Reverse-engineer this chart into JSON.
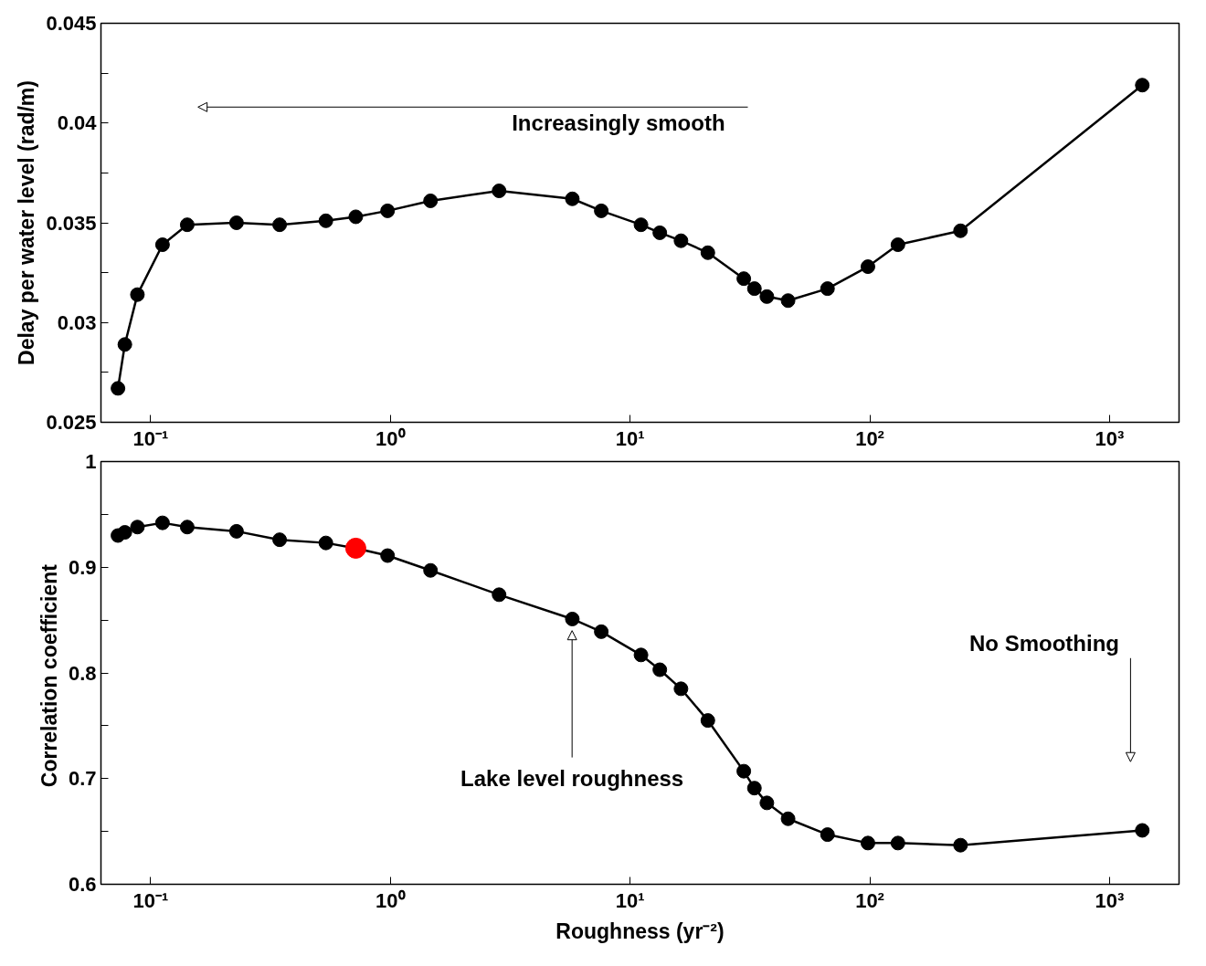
{
  "chart_data": [
    {
      "type": "line",
      "ylabel": "Delay per water level (rad/m)",
      "log": "x",
      "grid": false,
      "marker": "circle",
      "line_style": "solid",
      "xlim": [
        0.062,
        1950
      ],
      "xticks": [
        {
          "value": 0.1,
          "label": "10⁻¹"
        },
        {
          "value": 1,
          "label": "10⁰"
        },
        {
          "value": 10,
          "label": "10¹"
        },
        {
          "value": 100,
          "label": "10²"
        },
        {
          "value": 1000,
          "label": "10³"
        }
      ],
      "ylim": [
        0.025,
        0.045
      ],
      "yticks": [
        0.025,
        {
          "value": 0.0275,
          "label": null
        },
        0.03,
        {
          "value": 0.0325,
          "label": null
        },
        0.035,
        {
          "value": 0.0375,
          "label": null
        },
        0.04,
        {
          "value": 0.0425,
          "label": null
        },
        0.045
      ],
      "x": [
        0.073,
        0.078,
        0.088,
        0.112,
        0.142,
        0.228,
        0.345,
        0.538,
        0.717,
        0.973,
        1.47,
        2.84,
        5.74,
        7.58,
        11.1,
        13.3,
        16.3,
        21.1,
        29.8,
        33.0,
        37.2,
        45.6,
        66.6,
        98.2,
        131,
        239,
        1370
      ],
      "series": [
        {
          "color": "#000000",
          "values": [
            0.0267,
            0.0289,
            0.0314,
            0.0339,
            0.0349,
            0.035,
            0.0349,
            0.0351,
            0.0353,
            0.0356,
            0.0361,
            0.0366,
            0.0362,
            0.0356,
            0.0349,
            0.0345,
            0.0341,
            0.0335,
            0.0322,
            0.0317,
            0.0313,
            0.0311,
            0.0317,
            0.0328,
            0.0339,
            0.0346,
            0.0419
          ]
        }
      ],
      "annotations": [
        "Increasingly smooth"
      ]
    },
    {
      "type": "line",
      "ylabel": "Correlation  coefficient",
      "xlabel": "Roughness (yr⁻²)",
      "log": "x",
      "grid": false,
      "marker": "circle",
      "line_style": "solid",
      "xlim": [
        0.062,
        1950
      ],
      "xticks": [
        {
          "value": 0.1,
          "label": "10⁻¹"
        },
        {
          "value": 1,
          "label": "10⁰"
        },
        {
          "value": 10,
          "label": "10¹"
        },
        {
          "value": 100,
          "label": "10²"
        },
        {
          "value": 1000,
          "label": "10³"
        }
      ],
      "ylim": [
        0.6,
        1
      ],
      "yticks": [
        0.6,
        {
          "value": 0.65,
          "label": null
        },
        0.7,
        {
          "value": 0.75,
          "label": null
        },
        0.8,
        {
          "value": 0.85,
          "label": null
        },
        0.9,
        {
          "value": 0.95,
          "label": null
        },
        1
      ],
      "x": [
        0.073,
        0.078,
        0.088,
        0.112,
        0.142,
        0.228,
        0.345,
        0.538,
        0.717,
        0.973,
        1.47,
        2.84,
        5.74,
        7.58,
        11.1,
        13.3,
        16.3,
        21.1,
        29.8,
        33.0,
        37.2,
        45.6,
        66.6,
        98.2,
        131,
        239,
        1370
      ],
      "series": [
        {
          "colors": [
            "#000000",
            "#000000",
            "#000000",
            "#000000",
            "#000000",
            "#000000",
            "#000000",
            "#000000",
            "#ff0000",
            "#000000",
            "#000000",
            "#000000",
            "#000000",
            "#000000",
            "#000000",
            "#000000",
            "#000000",
            "#000000",
            "#000000",
            "#000000",
            "#000000",
            "#000000",
            "#000000",
            "#000000",
            "#000000",
            "#000000",
            "#000000"
          ],
          "color": "#000000",
          "values": [
            0.93,
            0.933,
            0.938,
            0.942,
            0.938,
            0.934,
            0.926,
            0.923,
            0.918,
            0.911,
            0.897,
            0.874,
            0.851,
            0.839,
            0.817,
            0.803,
            0.785,
            0.755,
            0.707,
            0.691,
            0.677,
            0.662,
            0.647,
            0.639,
            0.639,
            0.637,
            0.651
          ]
        }
      ],
      "annotations": [
        "Lake level roughness",
        "No Smoothing"
      ]
    }
  ]
}
